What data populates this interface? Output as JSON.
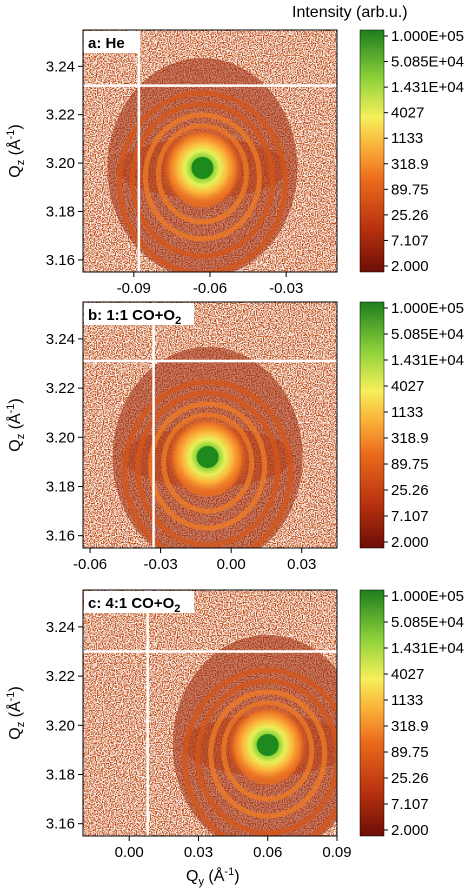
{
  "figure": {
    "colorbar_title": "Intensity (arb.u.)",
    "colorbar_ticks": [
      "1.000E+05",
      "5.085E+04",
      "1.431E+04",
      "4027",
      "1133",
      "318.9",
      "89.75",
      "25.26",
      "7.107",
      "2.000"
    ],
    "y_axis_title": "Q",
    "y_axis_title_sub": "z",
    "y_axis_title_unit": " (Å",
    "y_axis_title_exp": "-1",
    "y_axis_title_close": ")",
    "x_axis_title": "Q",
    "x_axis_title_sub": "y",
    "x_axis_title_unit": " (Å",
    "x_axis_title_exp": "-1",
    "x_axis_title_close": ")"
  },
  "colors": {
    "background_noise": "#c04a12",
    "low": "#7a1208",
    "mid": "#e8661c",
    "high": "#ffd23a",
    "peak": "#1e8a1e",
    "marker_lines": "#ffffff"
  },
  "chart_data": [
    {
      "type": "heatmap",
      "label_prefix": "a: He",
      "label_sub": "",
      "label_suffix": "",
      "y_ticks": [
        "3.24",
        "3.22",
        "3.20",
        "3.18",
        "3.16"
      ],
      "y_tick_values": [
        3.24,
        3.22,
        3.2,
        3.18,
        3.16
      ],
      "ylim": [
        3.155,
        3.255
      ],
      "x_ticks": [
        "-0.09",
        "-0.06",
        "-0.03"
      ],
      "x_tick_values": [
        -0.09,
        -0.06,
        -0.03
      ],
      "xlim": [
        -0.11,
        -0.01
      ],
      "peak": {
        "qy": -0.063,
        "qz": 3.198
      },
      "marker_qy": -0.088,
      "marker_qz": 3.232,
      "colorscale": "log",
      "zlim": [
        2.0,
        100000.0
      ]
    },
    {
      "type": "heatmap",
      "label_prefix": "b: 1:1 CO+O",
      "label_sub": "2",
      "label_suffix": "",
      "y_ticks": [
        "3.24",
        "3.22",
        "3.20",
        "3.18",
        "3.16"
      ],
      "y_tick_values": [
        3.24,
        3.22,
        3.2,
        3.18,
        3.16
      ],
      "ylim": [
        3.155,
        3.255
      ],
      "x_ticks": [
        "-0.06",
        "-0.03",
        "0.00",
        "0.03"
      ],
      "x_tick_values": [
        -0.06,
        -0.03,
        0.0,
        0.03
      ],
      "xlim": [
        -0.063,
        0.045
      ],
      "peak": {
        "qy": -0.01,
        "qz": 3.192
      },
      "marker_qy": -0.033,
      "marker_qz": 3.231,
      "colorscale": "log",
      "zlim": [
        2.0,
        100000.0
      ]
    },
    {
      "type": "heatmap",
      "label_prefix": "c: 4:1 CO+O",
      "label_sub": "2",
      "label_suffix": "",
      "y_ticks": [
        "3.24",
        "3.22",
        "3.20",
        "3.18",
        "3.16"
      ],
      "y_tick_values": [
        3.24,
        3.22,
        3.2,
        3.18,
        3.16
      ],
      "ylim": [
        3.155,
        3.255
      ],
      "x_ticks": [
        "0.00",
        "0.03",
        "0.06",
        "0.09"
      ],
      "x_tick_values": [
        0.0,
        0.03,
        0.06,
        0.09
      ],
      "xlim": [
        -0.02,
        0.09
      ],
      "peak": {
        "qy": 0.06,
        "qz": 3.192
      },
      "marker_qy": 0.008,
      "marker_qz": 3.23,
      "colorscale": "log",
      "zlim": [
        2.0,
        100000.0
      ]
    }
  ]
}
